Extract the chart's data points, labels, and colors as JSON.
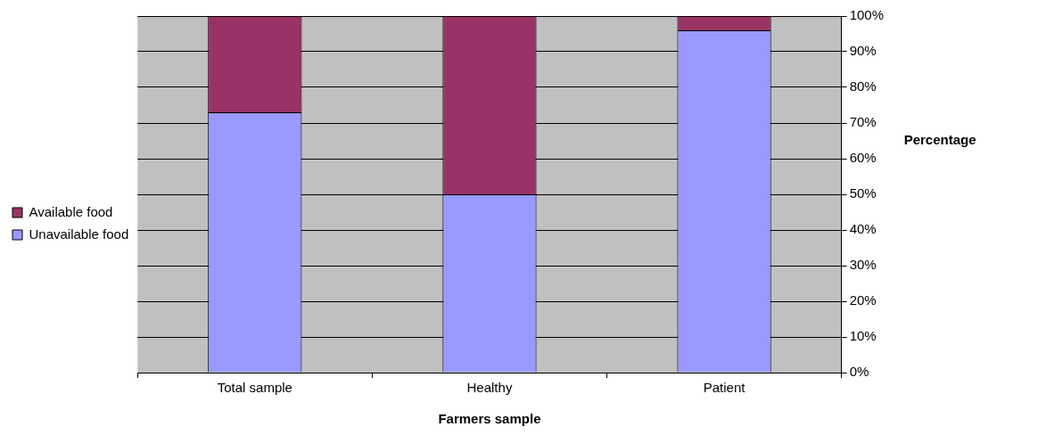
{
  "chart_data": {
    "type": "bar",
    "stacked": true,
    "xlabel": "Farmers sample",
    "ylabel": "Percentage",
    "categories": [
      "Total sample",
      "Healthy",
      "Patient"
    ],
    "series": [
      {
        "name": "Unavailable food",
        "color": "#9999ff",
        "values": [
          73,
          50,
          96
        ]
      },
      {
        "name": "Available food",
        "color": "#993366",
        "values": [
          27,
          50,
          4
        ]
      }
    ],
    "ylim": [
      0,
      100
    ],
    "yticks": [
      {
        "value": 0,
        "label": "0%"
      },
      {
        "value": 10,
        "label": "10%"
      },
      {
        "value": 20,
        "label": "20%"
      },
      {
        "value": 30,
        "label": "30%"
      },
      {
        "value": 40,
        "label": "40%"
      },
      {
        "value": 50,
        "label": "50%"
      },
      {
        "value": 60,
        "label": "60%"
      },
      {
        "value": 70,
        "label": "70%"
      },
      {
        "value": 80,
        "label": "80%"
      },
      {
        "value": 90,
        "label": "90%"
      },
      {
        "value": 100,
        "label": "100%"
      }
    ],
    "grid": "y",
    "legend": "left"
  }
}
